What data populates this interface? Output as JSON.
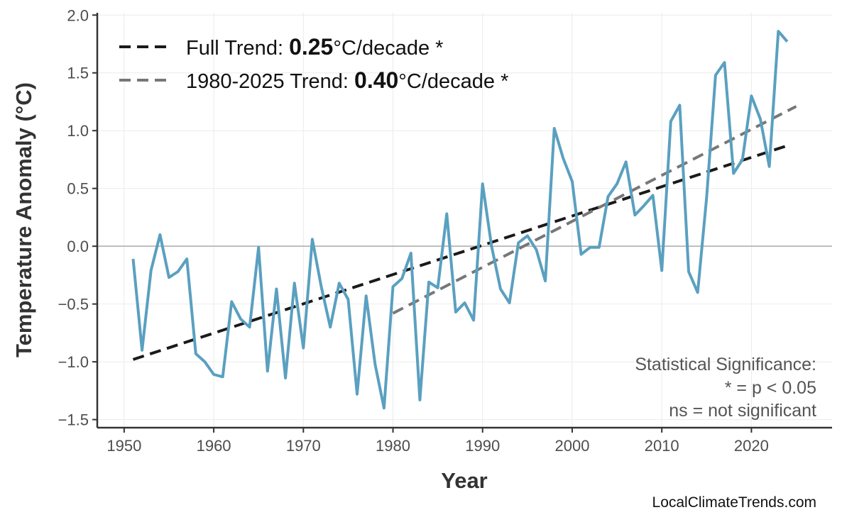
{
  "chart_data": {
    "type": "line",
    "xlabel": "Year",
    "ylabel": "Temperature Anomaly (°C)",
    "xlim": [
      1947,
      2029
    ],
    "ylim": [
      -1.57,
      2.02
    ],
    "x_ticks": [
      1950,
      1960,
      1970,
      1980,
      1990,
      2000,
      2010,
      2020
    ],
    "y_ticks": [
      -1.5,
      -1.0,
      -0.5,
      0.0,
      0.5,
      1.0,
      1.5,
      2.0
    ],
    "y_tick_labels": [
      "−1.5",
      "−1.0",
      "−0.5",
      "0.0",
      "0.5",
      "1.0",
      "1.5",
      "2.0"
    ],
    "grid": true,
    "zero_line": true,
    "series": [
      {
        "color": "#5aa0c0",
        "x": [
          1951,
          1952,
          1953,
          1954,
          1955,
          1956,
          1957,
          1958,
          1959,
          1960,
          1961,
          1962,
          1963,
          1964,
          1965,
          1966,
          1967,
          1968,
          1969,
          1970,
          1971,
          1972,
          1973,
          1974,
          1975,
          1976,
          1977,
          1978,
          1979,
          1980,
          1981,
          1982,
          1983,
          1984,
          1985,
          1986,
          1987,
          1988,
          1989,
          1990,
          1991,
          1992,
          1993,
          1994,
          1995,
          1996,
          1997,
          1998,
          1999,
          2000,
          2001,
          2002,
          2003,
          2004,
          2005,
          2006,
          2007,
          2008,
          2009,
          2010,
          2011,
          2012,
          2013,
          2014,
          2015,
          2016,
          2017,
          2018,
          2019,
          2020,
          2021,
          2022,
          2023,
          2024
        ],
        "y": [
          -0.11,
          -0.9,
          -0.21,
          0.1,
          -0.27,
          -0.22,
          -0.11,
          -0.93,
          -1.0,
          -1.11,
          -1.13,
          -0.48,
          -0.63,
          -0.7,
          -0.01,
          -1.08,
          -0.37,
          -1.14,
          -0.32,
          -0.88,
          0.06,
          -0.35,
          -0.7,
          -0.32,
          -0.46,
          -1.28,
          -0.43,
          -1.02,
          -1.4,
          -0.35,
          -0.28,
          -0.06,
          -1.33,
          -0.31,
          -0.36,
          0.28,
          -0.57,
          -0.49,
          -0.64,
          0.54,
          0.0,
          -0.37,
          -0.49,
          0.03,
          0.09,
          -0.03,
          -0.3,
          1.02,
          0.76,
          0.56,
          -0.07,
          -0.01,
          -0.01,
          0.43,
          0.54,
          0.73,
          0.27,
          0.35,
          0.44,
          -0.21,
          1.08,
          1.22,
          -0.22,
          -0.4,
          0.42,
          1.48,
          1.59,
          0.63,
          0.75,
          1.3,
          1.1,
          0.69,
          1.86,
          1.77
        ]
      }
    ],
    "trends": [
      {
        "label_prefix": "Full Trend: ",
        "value": "0.25",
        "label_suffix": "°C/decade *",
        "color": "#1a1a1a",
        "x": [
          1951,
          2024
        ],
        "y": [
          -0.98,
          0.87
        ]
      },
      {
        "label_prefix": "1980-2025 Trend: ",
        "value": "0.40",
        "label_suffix": "°C/decade *",
        "color": "#777777",
        "x": [
          1980,
          2025
        ],
        "y": [
          -0.58,
          1.21
        ]
      }
    ],
    "legend_position": "top-left",
    "annotation": [
      "Statistical Significance:",
      "* = p < 0.05",
      "ns = not significant"
    ],
    "source": "LocalClimateTrends.com"
  }
}
